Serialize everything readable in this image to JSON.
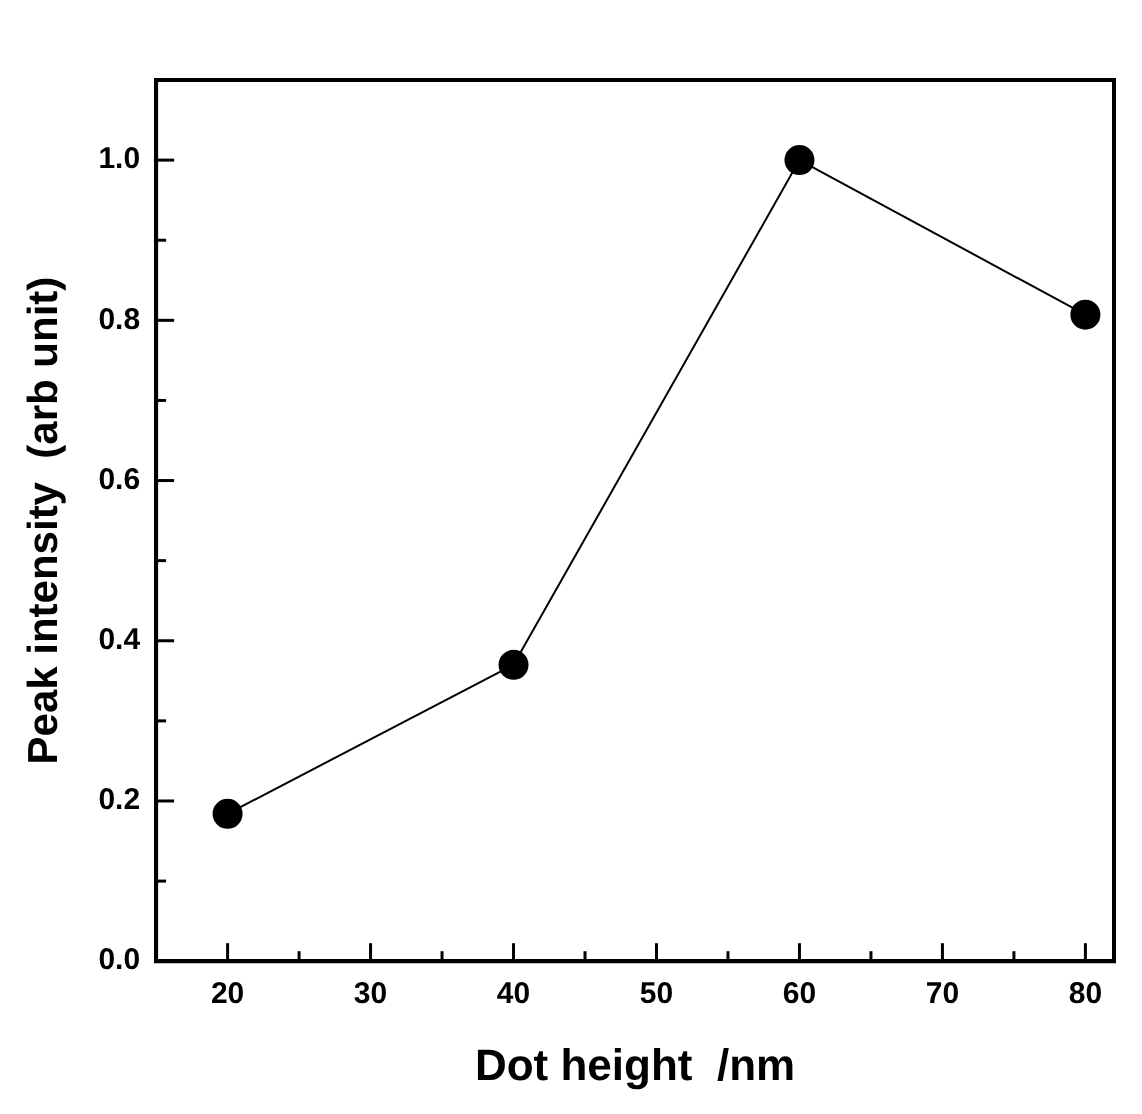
{
  "chart_data": {
    "type": "line",
    "xlabel": "Dot height  /nm",
    "ylabel": "Peak intensity  (arb unit)",
    "x": [
      20,
      40,
      60,
      80
    ],
    "series": [
      {
        "color": "#000000",
        "values": [
          0.184,
          0.37,
          1.0,
          0.807
        ]
      }
    ],
    "xlim": [
      15,
      82
    ],
    "ylim": [
      0,
      1.1
    ],
    "xticks": [
      20,
      {
        "value": 25,
        "label": null
      },
      30,
      {
        "value": 35,
        "label": null
      },
      40,
      {
        "value": 45,
        "label": null
      },
      50,
      {
        "value": 55,
        "label": null
      },
      60,
      {
        "value": 65,
        "label": null
      },
      70,
      {
        "value": 75,
        "label": null
      },
      80
    ],
    "yticks": [
      {
        "value": 0,
        "label": "0.0"
      },
      {
        "value": 0.1,
        "label": null
      },
      {
        "value": 0.2,
        "label": "0.2"
      },
      {
        "value": 0.3,
        "label": null
      },
      {
        "value": 0.4,
        "label": "0.4"
      },
      {
        "value": 0.5,
        "label": null
      },
      {
        "value": 0.6,
        "label": "0.6"
      },
      {
        "value": 0.7,
        "label": null
      },
      {
        "value": 0.8,
        "label": "0.8"
      },
      {
        "value": 0.9,
        "label": null
      },
      {
        "value": 1.0,
        "label": "1.0"
      }
    ],
    "marker": "circle",
    "line_style": "solid",
    "grid": false,
    "legend": false
  }
}
